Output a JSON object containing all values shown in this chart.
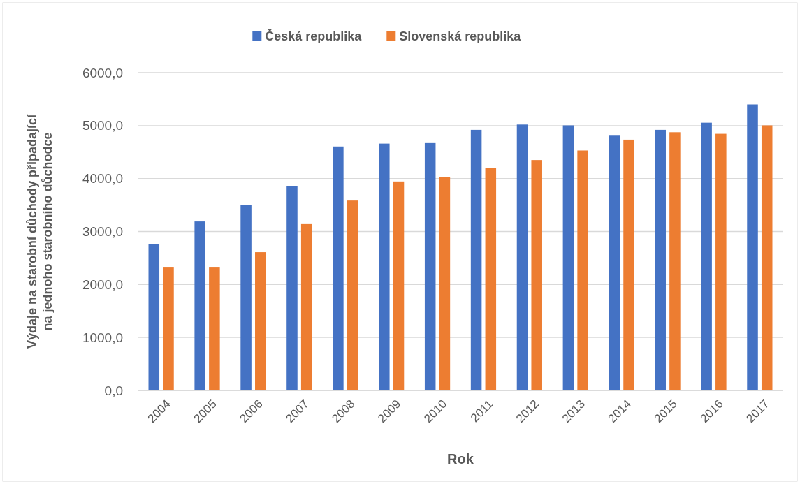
{
  "chart_data": {
    "type": "bar",
    "xlabel": "Rok",
    "ylabel": "Výdaje na starobní důchody připadající\nna jednoho starobního důchodce",
    "categories": [
      "2004",
      "2005",
      "2006",
      "2007",
      "2008",
      "2009",
      "2010",
      "2011",
      "2012",
      "2013",
      "2014",
      "2015",
      "2016",
      "2017"
    ],
    "series": [
      {
        "name": "Česká republika",
        "color": "#4472c4",
        "values": [
          2760,
          3190,
          3505,
          3860,
          4605,
          4660,
          4670,
          4920,
          5020,
          5005,
          4810,
          4920,
          5055,
          5400
        ]
      },
      {
        "name": "Slovenská republika",
        "color": "#ed7d31",
        "values": [
          2320,
          2320,
          2610,
          3140,
          3585,
          3945,
          4025,
          4195,
          4350,
          4530,
          4735,
          4875,
          4845,
          5005
        ]
      }
    ],
    "ylim": [
      0,
      6000
    ],
    "yticks": [
      {
        "value": 0,
        "label": "0,0"
      },
      {
        "value": 1000,
        "label": "1000,0"
      },
      {
        "value": 2000,
        "label": "2000,0"
      },
      {
        "value": 3000,
        "label": "3000,0"
      },
      {
        "value": 4000,
        "label": "4000,0"
      },
      {
        "value": 5000,
        "label": "5000,0"
      },
      {
        "value": 6000,
        "label": "6000,0"
      }
    ],
    "grid": "y",
    "legend": "top"
  }
}
